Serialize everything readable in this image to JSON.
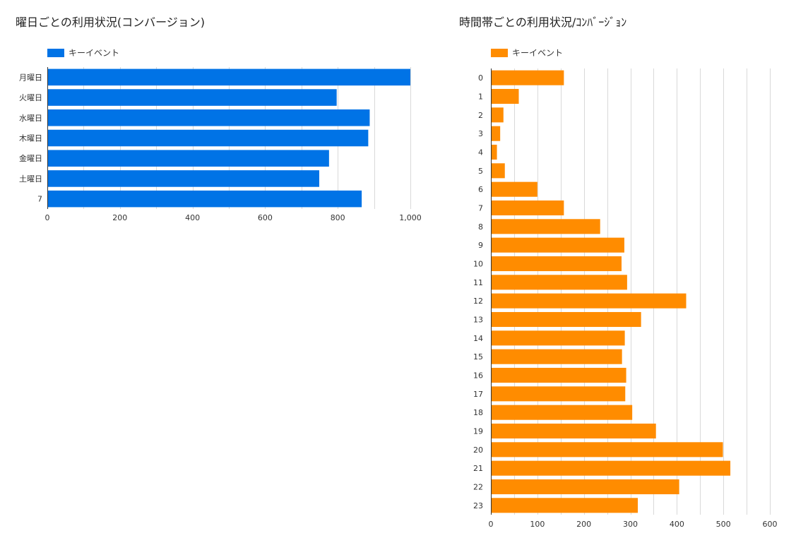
{
  "chart_data": [
    {
      "type": "bar",
      "orientation": "horizontal",
      "title": "曜日ごとの利用状況(コンバージョン)",
      "categories": [
        "月曜日",
        "火曜日",
        "水曜日",
        "木曜日",
        "金曜日",
        "土曜日",
        "7"
      ],
      "series": [
        {
          "name": "キーイベント",
          "values": [
            1000,
            797,
            888,
            884,
            776,
            749,
            866
          ]
        }
      ],
      "xlim": [
        0,
        1000
      ],
      "x_ticks": [
        "0",
        "200",
        "400",
        "600",
        "800",
        "1,000"
      ],
      "x_tick_values": [
        0,
        200,
        400,
        600,
        800,
        1000
      ],
      "x_gridline_step": 100,
      "color": "#0073e6",
      "grid": true,
      "legend": "top-left"
    },
    {
      "type": "bar",
      "orientation": "horizontal",
      "title": "時間帯ごとの利用状況/ｺﾝﾊﾞｰｼﾞｮﾝ",
      "categories": [
        "0",
        "1",
        "2",
        "3",
        "4",
        "5",
        "6",
        "7",
        "8",
        "9",
        "10",
        "11",
        "12",
        "13",
        "14",
        "15",
        "16",
        "17",
        "18",
        "19",
        "20",
        "21",
        "22",
        "23"
      ],
      "series": [
        {
          "name": "キーイベント",
          "values": [
            157,
            60,
            27,
            20,
            13,
            30,
            100,
            157,
            235,
            287,
            281,
            293,
            420,
            323,
            288,
            282,
            291,
            289,
            304,
            355,
            499,
            515,
            405,
            316
          ]
        }
      ],
      "xlim": [
        0,
        600
      ],
      "x_ticks": [
        "0",
        "100",
        "200",
        "300",
        "400",
        "500",
        "600"
      ],
      "x_tick_values": [
        0,
        100,
        200,
        300,
        400,
        500,
        600
      ],
      "x_gridline_step": 50,
      "color": "#ff8c00",
      "grid": true,
      "legend": "top-left"
    }
  ]
}
